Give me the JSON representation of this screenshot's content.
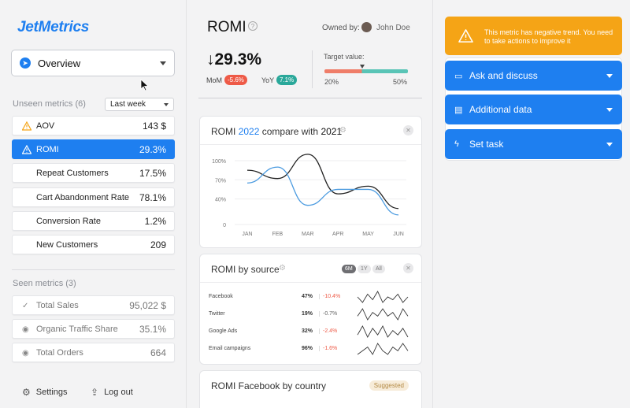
{
  "app": {
    "logo": "JetMetrics"
  },
  "sidebar": {
    "dashboard_select": "Overview",
    "unseen_label": "Unseen metrics (6)",
    "period_select": "Last week",
    "unseen": [
      {
        "name": "AOV",
        "value": "143 $",
        "warning": true
      },
      {
        "name": "ROMI",
        "value": "29.3%",
        "warning": true,
        "active": true
      },
      {
        "name": "Repeat Customers",
        "value": "17.5%"
      },
      {
        "name": "Cart Abandonment Rate",
        "value": "78.1%"
      },
      {
        "name": "Conversion Rate",
        "value": "1.2%"
      },
      {
        "name": "New Customers",
        "value": "209"
      }
    ],
    "seen_label": "Seen metrics (3)",
    "seen": [
      {
        "name": "Total Sales",
        "value": "95,022 $",
        "icon": "check-icon"
      },
      {
        "name": "Organic Traffic Share",
        "value": "35.1%",
        "icon": "eye-icon"
      },
      {
        "name": "Total Orders",
        "value": "664",
        "icon": "eye-icon"
      }
    ],
    "settings_label": "Settings",
    "logout_label": "Log out"
  },
  "metric": {
    "title": "ROMI",
    "owned_by_label": "Owned by:",
    "owner": "John Doe",
    "value": "↓29.3%",
    "mom_label": "MoM",
    "mom_value": "-5.6%",
    "yoy_label": "YoY",
    "yoy_value": "7.1%",
    "target_label": "Target value:",
    "target_min": "20%",
    "target_max": "50%",
    "target_fraction": 0.45
  },
  "compare_card": {
    "title_prefix": "ROMI",
    "year_current": "2022",
    "title_mid": "compare with",
    "year_prev": "2021"
  },
  "chart_data": {
    "type": "line",
    "categories": [
      "JAN",
      "FEB",
      "MAR",
      "APR",
      "MAY",
      "JUN"
    ],
    "yticks": [
      "100%",
      "70%",
      "40%",
      "0"
    ],
    "ylim": [
      0,
      100
    ],
    "series": [
      {
        "color": "#222222",
        "values": [
          85,
          72,
          110,
          48,
          60,
          25
        ]
      },
      {
        "color": "#4b9be0",
        "values": [
          65,
          90,
          30,
          55,
          55,
          15
        ]
      }
    ],
    "grid": true
  },
  "source_card": {
    "title": "ROMI by source",
    "ranges": [
      "6M",
      "1Y",
      "All"
    ],
    "rows": [
      {
        "name": "Facebook",
        "pct": "47%",
        "delta": "-10.4%",
        "color": "#ee5a47",
        "spark": [
          5,
          3,
          6,
          4,
          7,
          3,
          5,
          4,
          6,
          3,
          5
        ]
      },
      {
        "name": "Twitter",
        "pct": "19%",
        "delta": "-0.7%",
        "color": "#666666",
        "spark": [
          4,
          6,
          3,
          5,
          4,
          6,
          4,
          5,
          3,
          6,
          4
        ]
      },
      {
        "name": "Google Ads",
        "pct": "32%",
        "delta": "-2.4%",
        "color": "#ee5a47",
        "spark": [
          3,
          7,
          2,
          6,
          3,
          7,
          2,
          5,
          3,
          6,
          2
        ]
      },
      {
        "name": "Email campaigns",
        "pct": "96%",
        "delta": "-1.6%",
        "color": "#ee5a47",
        "spark": [
          3,
          4,
          5,
          3,
          6,
          4,
          3,
          5,
          4,
          6,
          4
        ]
      }
    ]
  },
  "country_card": {
    "title": "ROMI Facebook by country",
    "badge": "Suggested"
  },
  "right": {
    "alert_text": "This metric has negative trend. You need to take actions to improve it",
    "actions": [
      {
        "label": "Ask and discuss",
        "icon": "chat-icon"
      },
      {
        "label": "Additional data",
        "icon": "note-icon"
      },
      {
        "label": "Set task",
        "icon": "bolt-icon"
      }
    ]
  }
}
